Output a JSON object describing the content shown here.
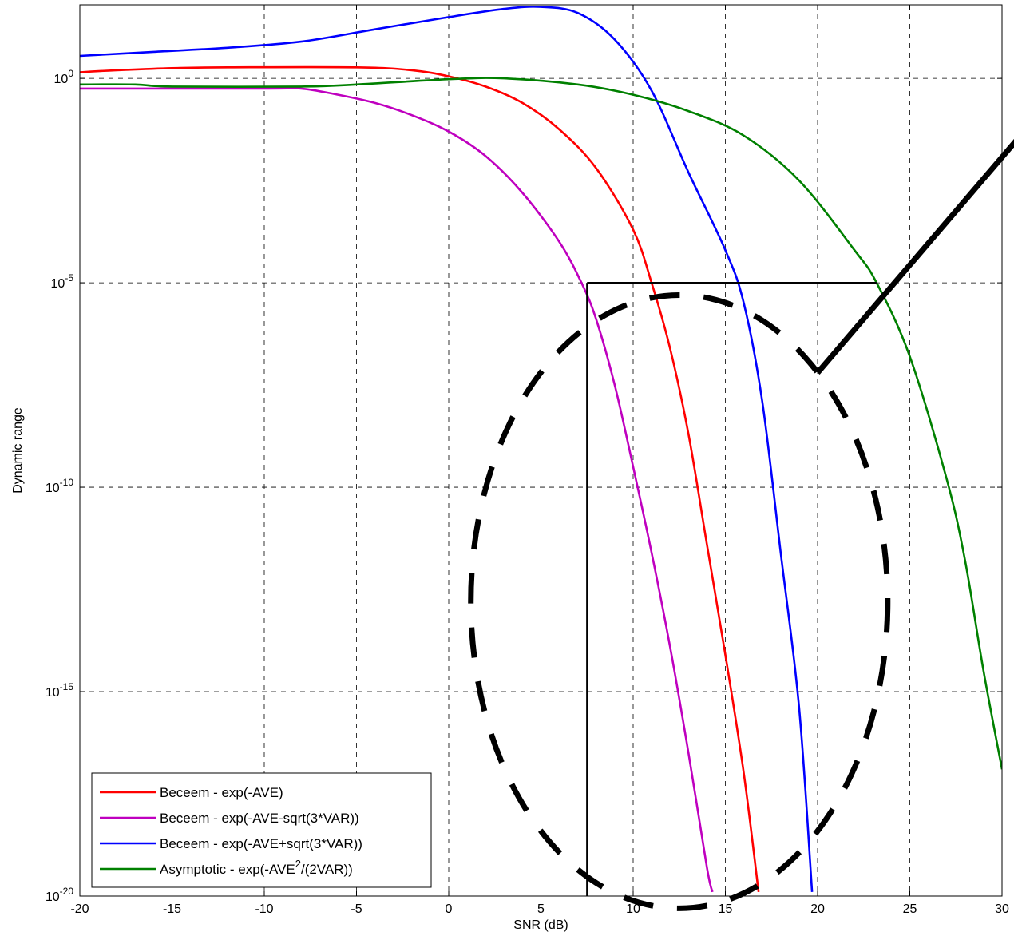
{
  "chart_data": {
    "type": "line",
    "title": "",
    "xlabel": "SNR (dB)",
    "ylabel": "Dynamic range",
    "xlim": [
      -20,
      30
    ],
    "ylim_exponent": [
      -20,
      0
    ],
    "y_scale": "log",
    "grid": true,
    "legend_position": "bottom-left",
    "x_ticks": [
      {
        "value": -20,
        "label": "-20"
      },
      {
        "value": -15,
        "label": "-15"
      },
      {
        "value": -10,
        "label": "-10"
      },
      {
        "value": -5,
        "label": "-5"
      },
      {
        "value": 0,
        "label": "0"
      },
      {
        "value": 5,
        "label": "5"
      },
      {
        "value": 10,
        "label": "10"
      },
      {
        "value": 15,
        "label": "15"
      },
      {
        "value": 20,
        "label": "20"
      },
      {
        "value": 25,
        "label": "25"
      },
      {
        "value": 30,
        "label": "30"
      }
    ],
    "y_ticks": [
      {
        "value": 0,
        "base": "10",
        "exp": "0"
      },
      {
        "value": -5,
        "base": "10",
        "exp": "-5"
      },
      {
        "value": -10,
        "base": "10",
        "exp": "-10"
      },
      {
        "value": -15,
        "base": "10",
        "exp": "-15"
      },
      {
        "value": -20,
        "base": "10",
        "exp": "-20"
      }
    ],
    "series": [
      {
        "name": "Beceem - exp(-AVE)",
        "color": "#ff0000",
        "points": [
          [
            -20,
            0.15
          ],
          [
            -18,
            0.2
          ],
          [
            -15,
            0.25
          ],
          [
            -12,
            0.27
          ],
          [
            -5,
            0.27
          ],
          [
            -2,
            0.2
          ],
          [
            0,
            0.05
          ],
          [
            2,
            -0.2
          ],
          [
            4,
            -0.6
          ],
          [
            6,
            -1.25
          ],
          [
            8,
            -2.2
          ],
          [
            10,
            -3.7
          ],
          [
            11,
            -5.0
          ],
          [
            12,
            -6.6
          ],
          [
            13,
            -8.7
          ],
          [
            14,
            -11.4
          ],
          [
            15,
            -14.1
          ],
          [
            16,
            -17.0
          ],
          [
            16.8,
            -19.9
          ]
        ]
      },
      {
        "name": "Beceem - exp(-AVE-sqrt(3*VAR))",
        "color": "#bf00bf",
        "points": [
          [
            -20,
            -0.25
          ],
          [
            -10,
            -0.25
          ],
          [
            -8,
            -0.25
          ],
          [
            -6,
            -0.4
          ],
          [
            -4,
            -0.6
          ],
          [
            -2,
            -0.9
          ],
          [
            0,
            -1.3
          ],
          [
            2,
            -1.9
          ],
          [
            4,
            -2.8
          ],
          [
            6,
            -4.0
          ],
          [
            7.2,
            -5.0
          ],
          [
            8,
            -5.9
          ],
          [
            9,
            -7.5
          ],
          [
            10,
            -9.5
          ],
          [
            11,
            -11.6
          ],
          [
            12,
            -13.9
          ],
          [
            13,
            -16.5
          ],
          [
            14,
            -19.3
          ],
          [
            14.3,
            -19.9
          ]
        ]
      },
      {
        "name": "Beceem - exp(-AVE+sqrt(3*VAR))",
        "color": "#0000ff",
        "points": [
          [
            -20,
            0.55
          ],
          [
            -16,
            0.65
          ],
          [
            -12,
            0.75
          ],
          [
            -8,
            0.9
          ],
          [
            -4,
            1.2
          ],
          [
            0,
            1.5
          ],
          [
            3,
            1.7
          ],
          [
            5,
            1.75
          ],
          [
            7,
            1.6
          ],
          [
            9,
            0.95
          ],
          [
            11,
            -0.3
          ],
          [
            13,
            -2.3
          ],
          [
            15,
            -4.2
          ],
          [
            16,
            -5.5
          ],
          [
            17,
            -7.9
          ],
          [
            18,
            -11.6
          ],
          [
            19,
            -15.4
          ],
          [
            19.7,
            -19.9
          ]
        ]
      },
      {
        "name": "Asymptotic - exp(-AVE²/(2VAR))",
        "color": "#008000",
        "points": [
          [
            -20,
            -0.15
          ],
          [
            -17,
            -0.15
          ],
          [
            -15,
            -0.2
          ],
          [
            -8,
            -0.2
          ],
          [
            -5,
            -0.15
          ],
          [
            0,
            -0.02
          ],
          [
            3,
            0
          ],
          [
            7,
            -0.15
          ],
          [
            10,
            -0.4
          ],
          [
            13,
            -0.8
          ],
          [
            16,
            -1.4
          ],
          [
            19,
            -2.5
          ],
          [
            22,
            -4.2
          ],
          [
            23.2,
            -5.0
          ],
          [
            25,
            -6.8
          ],
          [
            27,
            -9.8
          ],
          [
            28,
            -11.8
          ],
          [
            29,
            -14.5
          ],
          [
            30,
            -16.9
          ]
        ]
      }
    ],
    "legend": [
      {
        "text": "Beceem - exp(-AVE)",
        "sup": "",
        "after": "",
        "color": "#ff0000"
      },
      {
        "text": "Beceem - exp(-AVE-sqrt(3*VAR))",
        "sup": "",
        "after": "",
        "color": "#bf00bf"
      },
      {
        "text": "Beceem - exp(-AVE+sqrt(3*VAR))",
        "sup": "",
        "after": "",
        "color": "#0000ff"
      },
      {
        "text": "Asymptotic - exp(-AVE",
        "sup": "2",
        "after": "/(2VAR))",
        "color": "#008000"
      }
    ],
    "annotations": {
      "threshold_line": {
        "y": -5,
        "x_from": 7.5,
        "x_to": 23.2
      },
      "vertical_line": {
        "x": 7.5,
        "y_from": -20,
        "y_to": -5
      },
      "ellipse": {
        "cx": 12.5,
        "cy": -12.8,
        "rx": 11.3,
        "ry": 7.5
      },
      "pointer_line": {
        "from": [
          20,
          -7.2
        ],
        "to": [
          31,
          -1.4
        ]
      }
    }
  }
}
